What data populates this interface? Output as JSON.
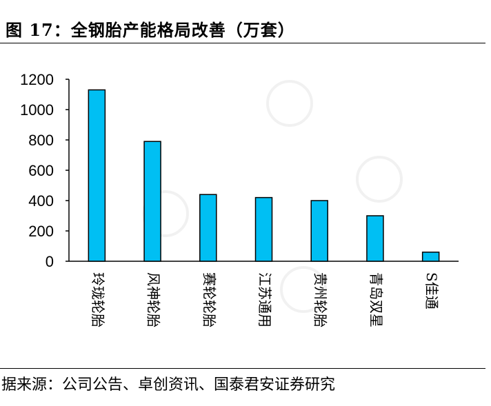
{
  "title": "图 17：全钢胎产能格局改善（万套）",
  "source": "据来源：公司公告、卓创资讯、国泰君安证券研究",
  "colors": {
    "bar": "#00BFF3",
    "bar_stroke": "#000000",
    "axis": "#000000"
  },
  "chart_data": {
    "type": "bar",
    "categories": [
      "玲珑轮胎",
      "风神轮胎",
      "赛轮轮胎",
      "江苏通用",
      "贵州轮胎",
      "青岛双星",
      "S佳通"
    ],
    "values": [
      1130,
      790,
      440,
      420,
      400,
      300,
      60
    ],
    "ylim": [
      0,
      1200
    ],
    "yticks": [
      0,
      200,
      400,
      600,
      800,
      1000,
      1200
    ],
    "ytick_labels": [
      "0",
      "200",
      "400",
      "600",
      "800",
      "1000",
      "1200"
    ],
    "grid": false,
    "legend": "none"
  }
}
